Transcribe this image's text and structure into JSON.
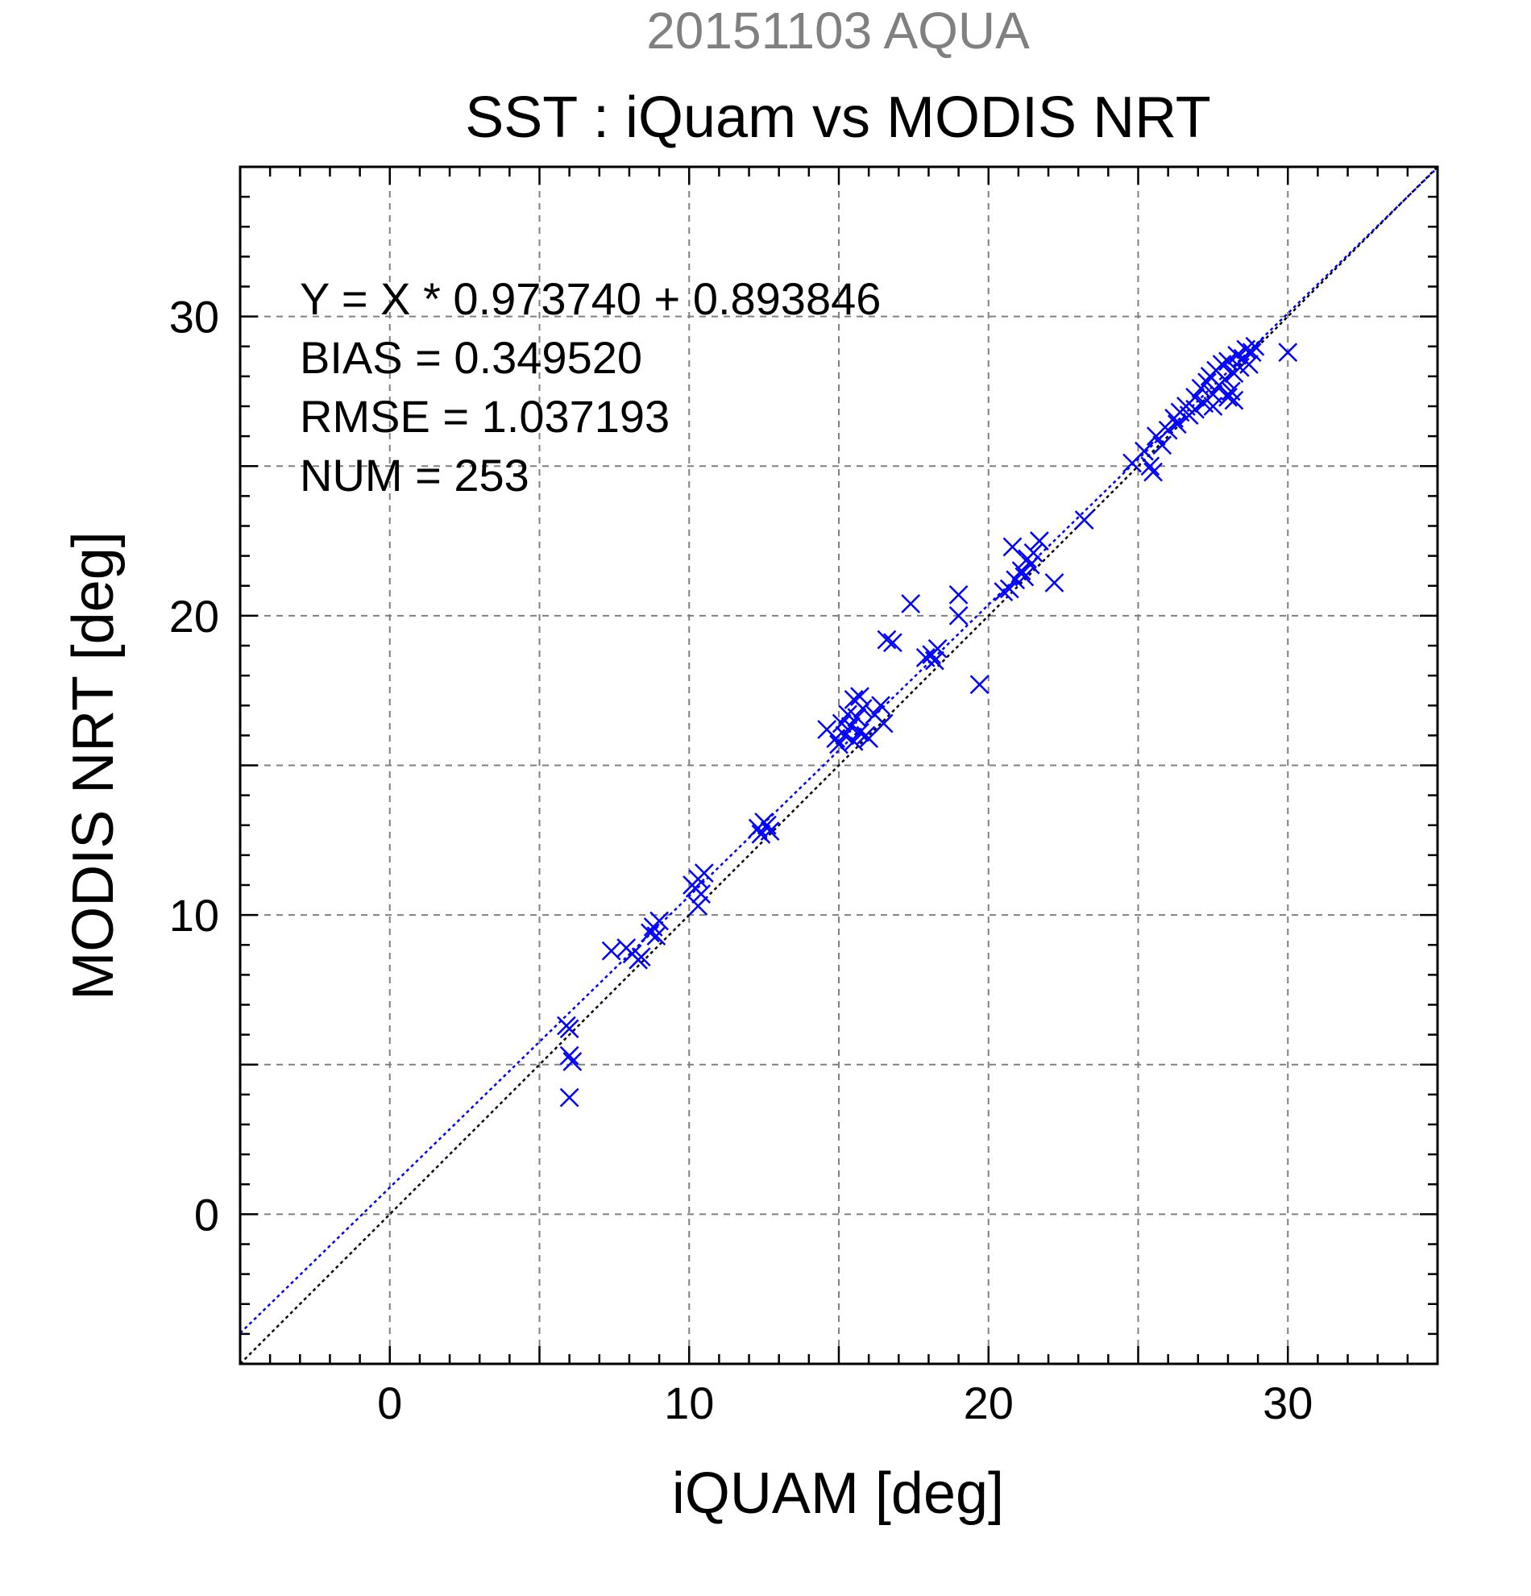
{
  "chart_data": {
    "type": "scatter",
    "date_title": "20151103 AQUA",
    "title": "SST : iQuam vs MODIS NRT",
    "xlabel": "iQUAM [deg]",
    "ylabel": "MODIS NRT [deg]",
    "xlim": [
      -5,
      35
    ],
    "ylim": [
      -5,
      35
    ],
    "x_ticks": [
      0,
      10,
      20,
      30
    ],
    "y_ticks": [
      0,
      10,
      20,
      30
    ],
    "grid_step": 5,
    "grid": true,
    "annotations": [
      "Y = X * 0.973740 + 0.893846",
      "BIAS = 0.349520",
      "RMSE = 1.037193",
      "NUM = 253"
    ],
    "fit": {
      "slope": 0.97374,
      "intercept": 0.893846,
      "color": "#0000ff"
    },
    "identity_line_color": "#000000",
    "marker_color": "#0000ff",
    "title_color_date": "#808080",
    "points": [
      {
        "x": 5.9,
        "y": 6.3
      },
      {
        "x": 6.0,
        "y": 6.2
      },
      {
        "x": 6.0,
        "y": 5.3
      },
      {
        "x": 6.1,
        "y": 5.1
      },
      {
        "x": 6.0,
        "y": 3.9
      },
      {
        "x": 7.4,
        "y": 8.8
      },
      {
        "x": 7.9,
        "y": 8.9
      },
      {
        "x": 8.1,
        "y": 8.7
      },
      {
        "x": 8.3,
        "y": 8.5
      },
      {
        "x": 8.4,
        "y": 8.6
      },
      {
        "x": 8.7,
        "y": 9.4
      },
      {
        "x": 8.8,
        "y": 9.6
      },
      {
        "x": 9.0,
        "y": 9.8
      },
      {
        "x": 8.9,
        "y": 9.3
      },
      {
        "x": 10.2,
        "y": 10.9
      },
      {
        "x": 10.3,
        "y": 11.2
      },
      {
        "x": 10.4,
        "y": 10.7
      },
      {
        "x": 10.5,
        "y": 11.4
      },
      {
        "x": 10.3,
        "y": 10.3
      },
      {
        "x": 10.1,
        "y": 11.0
      },
      {
        "x": 12.3,
        "y": 12.9
      },
      {
        "x": 12.5,
        "y": 13.1
      },
      {
        "x": 12.7,
        "y": 12.8
      },
      {
        "x": 12.4,
        "y": 12.7
      },
      {
        "x": 12.6,
        "y": 13.0
      },
      {
        "x": 14.6,
        "y": 16.2
      },
      {
        "x": 14.9,
        "y": 15.9
      },
      {
        "x": 15.1,
        "y": 16.4
      },
      {
        "x": 15.2,
        "y": 16.0
      },
      {
        "x": 15.3,
        "y": 16.7
      },
      {
        "x": 15.4,
        "y": 16.3
      },
      {
        "x": 15.5,
        "y": 17.2
      },
      {
        "x": 15.6,
        "y": 16.6
      },
      {
        "x": 15.7,
        "y": 16.1
      },
      {
        "x": 15.8,
        "y": 16.9
      },
      {
        "x": 15.9,
        "y": 16.0
      },
      {
        "x": 16.0,
        "y": 15.9
      },
      {
        "x": 16.2,
        "y": 16.7
      },
      {
        "x": 16.5,
        "y": 16.4
      },
      {
        "x": 16.4,
        "y": 17.0
      },
      {
        "x": 15.5,
        "y": 15.8
      },
      {
        "x": 15.0,
        "y": 15.7
      },
      {
        "x": 15.7,
        "y": 17.3
      },
      {
        "x": 16.6,
        "y": 19.2
      },
      {
        "x": 16.8,
        "y": 19.1
      },
      {
        "x": 17.4,
        "y": 20.4
      },
      {
        "x": 17.9,
        "y": 18.6
      },
      {
        "x": 18.1,
        "y": 18.7
      },
      {
        "x": 18.3,
        "y": 18.9
      },
      {
        "x": 18.2,
        "y": 18.5
      },
      {
        "x": 19.0,
        "y": 20.7
      },
      {
        "x": 19.0,
        "y": 20.0
      },
      {
        "x": 19.7,
        "y": 17.7
      },
      {
        "x": 20.5,
        "y": 20.8
      },
      {
        "x": 20.7,
        "y": 20.9
      },
      {
        "x": 20.9,
        "y": 21.2
      },
      {
        "x": 21.1,
        "y": 21.5
      },
      {
        "x": 21.3,
        "y": 21.9
      },
      {
        "x": 21.5,
        "y": 22.1
      },
      {
        "x": 21.2,
        "y": 21.3
      },
      {
        "x": 20.8,
        "y": 22.3
      },
      {
        "x": 21.7,
        "y": 22.5
      },
      {
        "x": 21.4,
        "y": 21.7
      },
      {
        "x": 22.2,
        "y": 21.1
      },
      {
        "x": 23.2,
        "y": 23.2
      },
      {
        "x": 24.8,
        "y": 25.1
      },
      {
        "x": 25.2,
        "y": 25.5
      },
      {
        "x": 25.4,
        "y": 25.0
      },
      {
        "x": 25.5,
        "y": 24.8
      },
      {
        "x": 25.6,
        "y": 26.0
      },
      {
        "x": 25.8,
        "y": 25.7
      },
      {
        "x": 26.0,
        "y": 26.2
      },
      {
        "x": 26.2,
        "y": 26.6
      },
      {
        "x": 26.4,
        "y": 26.8
      },
      {
        "x": 26.6,
        "y": 27.0
      },
      {
        "x": 26.3,
        "y": 26.4
      },
      {
        "x": 26.7,
        "y": 26.7
      },
      {
        "x": 26.9,
        "y": 27.3
      },
      {
        "x": 27.1,
        "y": 27.6
      },
      {
        "x": 27.2,
        "y": 27.1
      },
      {
        "x": 27.3,
        "y": 27.8
      },
      {
        "x": 27.4,
        "y": 28.0
      },
      {
        "x": 27.5,
        "y": 27.4
      },
      {
        "x": 27.6,
        "y": 28.2
      },
      {
        "x": 27.7,
        "y": 27.7
      },
      {
        "x": 27.8,
        "y": 28.4
      },
      {
        "x": 27.9,
        "y": 27.9
      },
      {
        "x": 28.0,
        "y": 28.5
      },
      {
        "x": 28.1,
        "y": 27.5
      },
      {
        "x": 28.2,
        "y": 28.1
      },
      {
        "x": 28.3,
        "y": 28.7
      },
      {
        "x": 28.4,
        "y": 28.3
      },
      {
        "x": 28.5,
        "y": 28.6
      },
      {
        "x": 28.6,
        "y": 28.9
      },
      {
        "x": 28.7,
        "y": 28.4
      },
      {
        "x": 28.8,
        "y": 28.8
      },
      {
        "x": 28.9,
        "y": 29.0
      },
      {
        "x": 28.2,
        "y": 27.2
      },
      {
        "x": 27.5,
        "y": 27.0
      },
      {
        "x": 26.9,
        "y": 26.9
      },
      {
        "x": 28.0,
        "y": 27.3
      },
      {
        "x": 30.0,
        "y": 28.8
      }
    ]
  }
}
